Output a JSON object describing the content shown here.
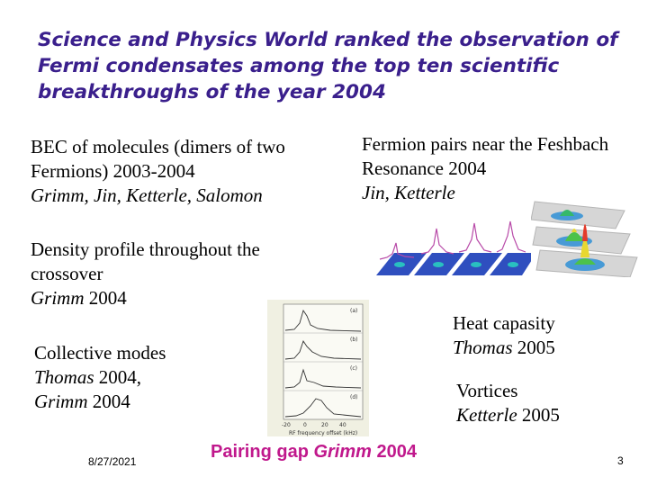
{
  "title": "Science and Physics World ranked the observation of Fermi condensates among the top ten scientific breakthroughs of the year 2004",
  "bec": {
    "line1": "BEC of molecules (dimers of two",
    "line2": "Fermions) 2003-2004",
    "authors": "Grimm, Jin, Ketterle, Salomon"
  },
  "fermion": {
    "line1": "Fermion pairs near the Feshbach",
    "line2": "Resonance 2004",
    "authors": "Jin, Ketterle"
  },
  "density": {
    "line1": "Density profile throughout the",
    "line2": "crossover",
    "author": "Grimm",
    "year": " 2004"
  },
  "heat": {
    "line1": "Heat capasity",
    "author": "Thomas",
    "year": " 2005"
  },
  "collective": {
    "line1": "Collective modes",
    "author1": "Thomas",
    "year1": " 2004,",
    "author2": "Grimm",
    "year2": " 2004"
  },
  "vortices": {
    "line1": "Vortices",
    "author": "Ketterle",
    "year": " 2005"
  },
  "pairing": {
    "prefix": "Pairing gap ",
    "author": "Grimm",
    "year": " 2004"
  },
  "footer": {
    "date": "8/27/2021",
    "page": "3"
  },
  "rf_figure": {
    "panels": [
      "(a)",
      "(b)",
      "(c)",
      "(d)"
    ],
    "xlabel": "RF frequency offset (kHz)",
    "xticks": [
      "-20",
      "0",
      "20",
      "40"
    ]
  }
}
